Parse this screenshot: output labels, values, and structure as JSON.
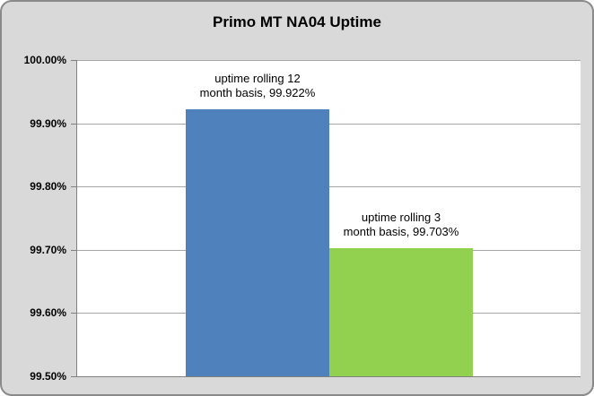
{
  "chart_data": {
    "type": "bar",
    "title": "Primo MT NA04 Uptime",
    "categories": [
      "uptime rolling 12 month basis",
      "uptime rolling 3 month basis"
    ],
    "values": [
      99.922,
      99.703
    ],
    "unit": "%",
    "xlabel": "",
    "ylabel": "",
    "ylim": [
      99.5,
      100.0
    ],
    "ytick_step": 0.1,
    "yticks": [
      "100.00%",
      "99.90%",
      "99.80%",
      "99.70%",
      "99.60%",
      "99.50%"
    ],
    "grid": true,
    "legend": "none",
    "bars": [
      {
        "name": "bar-uptime-rolling-12-month",
        "value": 99.922,
        "color": "#4F81BD",
        "label_lines": [
          "uptime rolling 12",
          "month basis, 99.922%"
        ]
      },
      {
        "name": "bar-uptime-rolling-3-month",
        "value": 99.703,
        "color": "#92D050",
        "label_lines": [
          "uptime rolling 3",
          "month basis, 99.703%"
        ]
      }
    ],
    "colors": {
      "chart_background": "#D9D9D9",
      "plot_background": "#FFFFFF",
      "gridline": "#A6A6A6",
      "axis": "#808080",
      "frame_border": "#8A8A8A",
      "text": "#000000"
    }
  }
}
